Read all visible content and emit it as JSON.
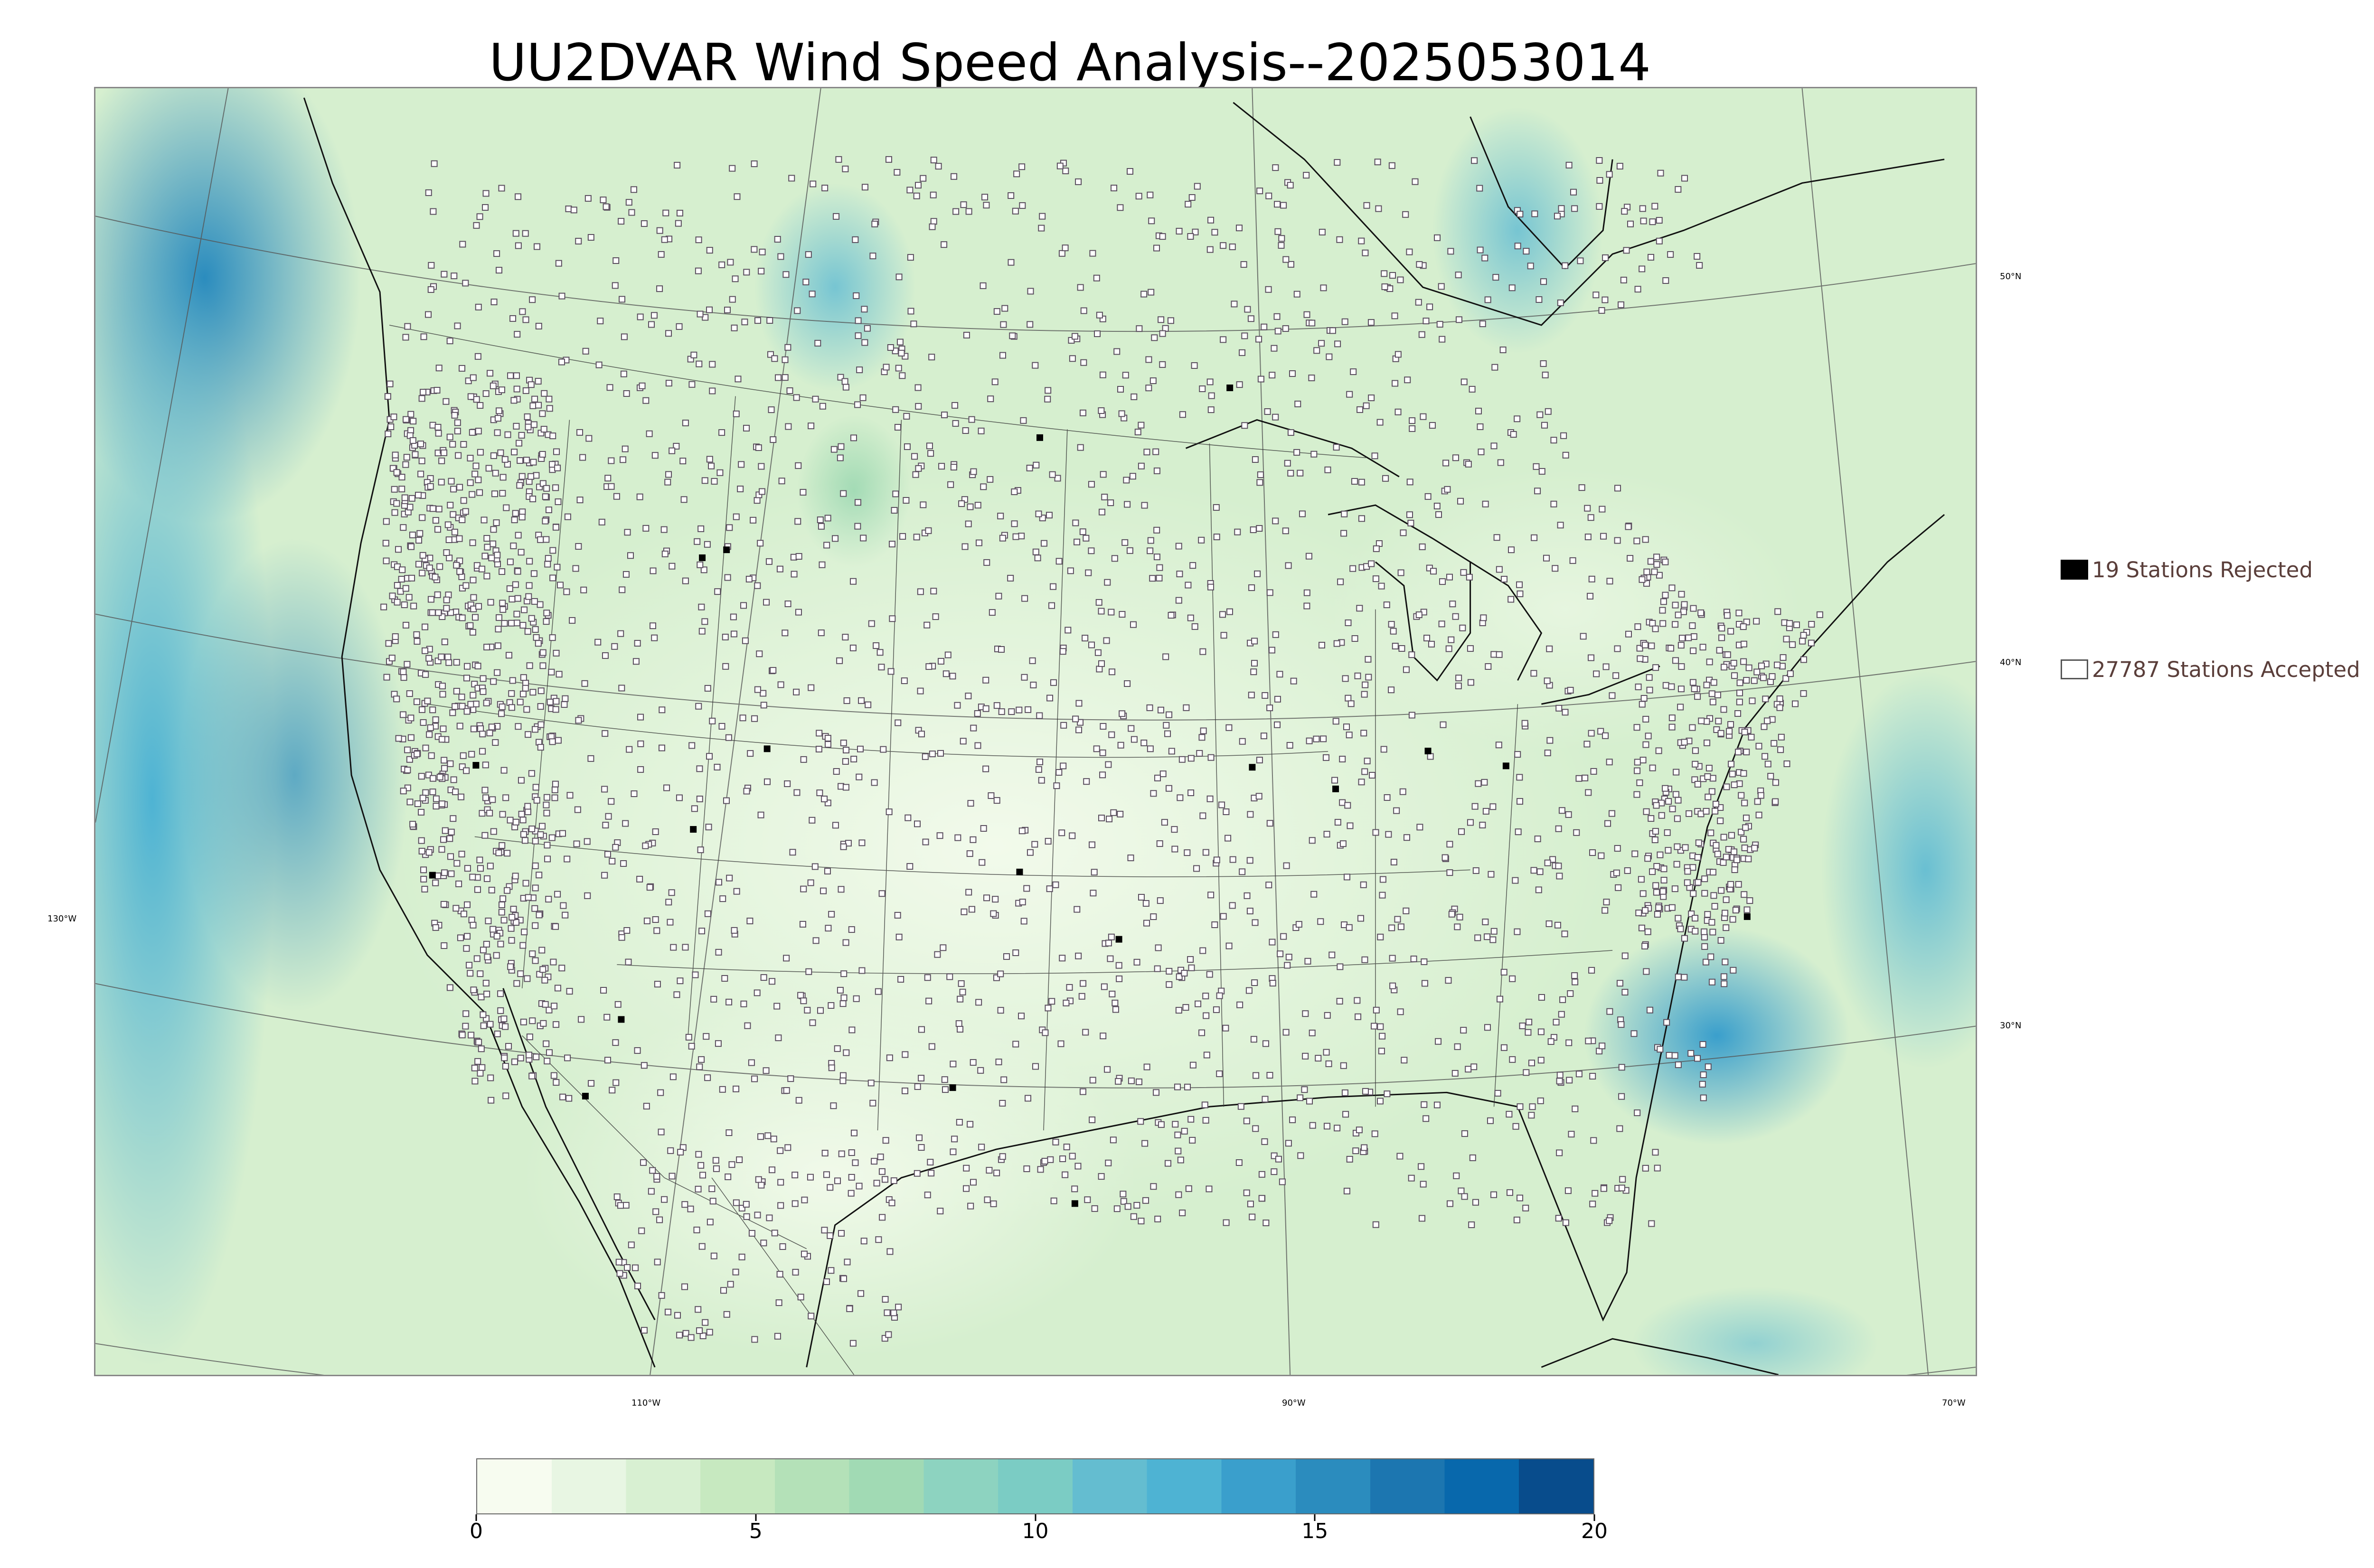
{
  "title": "UU2DVAR Wind Speed Analysis--2025053014",
  "map": {
    "projection": "lambert-conformal",
    "lon_labels": [
      "130°W",
      "110°W",
      "90°W",
      "70°W"
    ],
    "lat_labels": [
      "50°N",
      "40°N",
      "30°N"
    ],
    "land_outline_color": "#000000",
    "graticule_color": "#555555"
  },
  "legend": {
    "rejected_label": "19 Stations Rejected",
    "accepted_label": "27787 Stations Accepted",
    "rejected_count": 19,
    "accepted_count": 27787
  },
  "colorbar": {
    "min": 0,
    "max": 20,
    "ticks": [
      "0",
      "5",
      "10",
      "15",
      "20"
    ],
    "colors": [
      "#f7fcf0",
      "#e8f6e3",
      "#d8f0d2",
      "#c7e9c0",
      "#b4e1b8",
      "#a1dab4",
      "#8dd3c0",
      "#7bccc4",
      "#64bdd0",
      "#4eb3d3",
      "#3a9fcc",
      "#2b8cbe",
      "#1c76b0",
      "#0868ac",
      "#084c8c"
    ]
  }
}
